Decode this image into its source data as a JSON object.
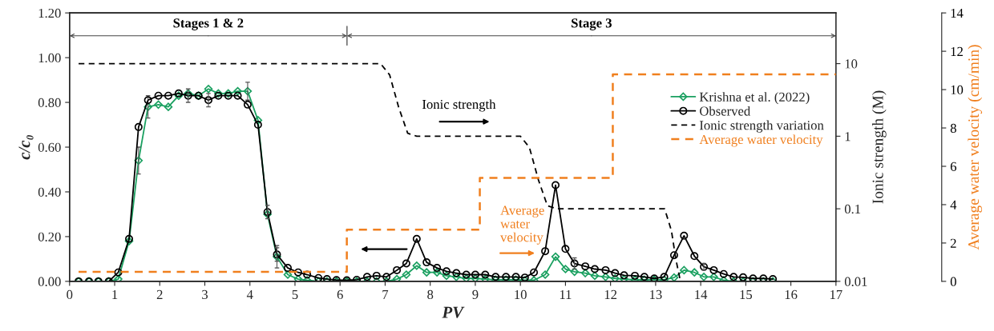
{
  "chart_data": {
    "type": "line",
    "xlabel": "PV",
    "ylabel": "c/c₀",
    "y2label": "Ionic strength (M)",
    "y3label": "Average water velocity (cm/min)",
    "x": [
      0.2,
      0.43,
      0.64,
      0.87,
      1.08,
      1.32,
      1.53,
      1.74,
      1.97,
      2.19,
      2.42,
      2.63,
      2.86,
      3.08,
      3.3,
      3.52,
      3.73,
      3.95,
      4.18,
      4.39,
      4.6,
      4.84,
      5.07,
      5.27,
      5.52,
      5.71,
      5.92,
      6.15,
      6.37,
      6.6,
      6.81,
      7.03,
      7.26,
      7.47,
      7.7,
      7.92,
      8.15,
      8.36,
      8.58,
      8.8,
      9.0,
      9.22,
      9.45,
      9.68,
      9.9,
      10.1,
      10.3,
      10.55,
      10.78,
      11.0,
      11.2,
      11.44,
      11.65,
      11.89,
      12.1,
      12.3,
      12.54,
      12.75,
      12.97,
      13.19,
      13.41,
      13.63,
      13.86,
      14.07,
      14.29,
      14.51,
      14.73,
      14.94,
      15.16,
      15.39,
      15.6
    ],
    "series": [
      {
        "name": "Krishna et al. (2022)",
        "color": "#1aa060",
        "marker": "diamond",
        "values": [
          0,
          0,
          0,
          0,
          0.01,
          0.18,
          0.54,
          0.78,
          0.79,
          0.78,
          0.83,
          0.84,
          0.83,
          0.86,
          0.84,
          0.84,
          0.85,
          0.85,
          0.72,
          0.3,
          0.11,
          0.03,
          0.01,
          0.005,
          0,
          0,
          0,
          0,
          0,
          0,
          0,
          0,
          0.01,
          0.03,
          0.07,
          0.04,
          0.04,
          0.025,
          0.02,
          0.013,
          0.013,
          0.01,
          0.007,
          0.007,
          0.007,
          0.005,
          0.005,
          0.03,
          0.11,
          0.055,
          0.043,
          0.037,
          0.025,
          0.02,
          0.013,
          0.01,
          0.007,
          0.007,
          0.007,
          0.007,
          0.017,
          0.05,
          0.04,
          0.02,
          0.02,
          0.005,
          0,
          0,
          0,
          0,
          0
        ],
        "errors": [
          null,
          null,
          null,
          null,
          null,
          null,
          0.06,
          0.05,
          null,
          null,
          null,
          null,
          null,
          null,
          null,
          null,
          null,
          0.04,
          null,
          null,
          0.05,
          null,
          null,
          null,
          null,
          null,
          null,
          null,
          null,
          null,
          null,
          null,
          null,
          null,
          null,
          null,
          null,
          null,
          null,
          null,
          null,
          null,
          null,
          null,
          null,
          null,
          null,
          null,
          null,
          null,
          null,
          null,
          null,
          null,
          null,
          null,
          null,
          null,
          null,
          null,
          null,
          null,
          null,
          null,
          null,
          null,
          null,
          null,
          null,
          null,
          null
        ]
      },
      {
        "name": "Observed",
        "color": "#000000",
        "marker": "circle",
        "values": [
          0,
          0,
          0,
          0,
          0.04,
          0.19,
          0.69,
          0.81,
          0.83,
          0.83,
          0.84,
          0.83,
          0.83,
          0.81,
          0.83,
          0.83,
          0.83,
          0.79,
          0.7,
          0.31,
          0.12,
          0.06,
          0.04,
          0.03,
          0.015,
          0.01,
          0.006,
          0.005,
          0.007,
          0.02,
          0.025,
          0.02,
          0.05,
          0.08,
          0.19,
          0.085,
          0.06,
          0.045,
          0.037,
          0.03,
          0.03,
          0.03,
          0.02,
          0.02,
          0.02,
          0.017,
          0.04,
          0.135,
          0.43,
          0.145,
          0.08,
          0.067,
          0.055,
          0.05,
          0.037,
          0.027,
          0.025,
          0.02,
          0.013,
          0.02,
          0.117,
          0.204,
          0.113,
          0.065,
          0.05,
          0.033,
          0.02,
          0.018,
          0.013,
          0.013,
          0.01
        ],
        "errors": [
          null,
          null,
          null,
          null,
          null,
          null,
          null,
          null,
          null,
          null,
          null,
          0.03,
          null,
          0.03,
          null,
          null,
          null,
          null,
          null,
          0.03,
          0.03,
          null,
          null,
          null,
          null,
          null,
          null,
          null,
          null,
          null,
          null,
          null,
          null,
          null,
          null,
          null,
          null,
          null,
          null,
          null,
          null,
          null,
          null,
          null,
          null,
          null,
          null,
          null,
          null,
          null,
          0.025,
          null,
          null,
          null,
          null,
          null,
          null,
          null,
          null,
          null,
          null,
          null,
          null,
          0.015,
          null,
          null,
          null,
          null,
          null,
          null,
          null
        ]
      },
      {
        "name": "Ionic strength variation",
        "color": "#000000",
        "axis": "y2",
        "line_style": "dashed",
        "marker": "none",
        "x": [
          0.2,
          6.9,
          7.1,
          7.3,
          7.5,
          7.7,
          10.0,
          10.2,
          10.4,
          10.6,
          10.8,
          13.2,
          13.35,
          13.45,
          13.55
        ],
        "values": [
          10,
          10,
          7,
          2.5,
          1.1,
          1,
          1,
          0.7,
          0.25,
          0.11,
          0.1,
          0.1,
          0.05,
          0.02,
          0.01
        ]
      },
      {
        "name": "Average water velocity",
        "color": "#f07f1e",
        "type": "step",
        "axis": "y3",
        "line_style": "dashed",
        "marker": "none",
        "x": [
          0.2,
          6.15,
          9.1,
          12.05,
          17
        ],
        "values": [
          0.5,
          2.7,
          5.4,
          10.8,
          10.8
        ]
      }
    ],
    "xlim": [
      0,
      17
    ],
    "xticks": [
      0,
      1,
      2,
      3,
      4,
      5,
      6,
      7,
      8,
      9,
      10,
      11,
      12,
      13,
      14,
      15,
      16,
      17
    ],
    "ylim": [
      0,
      1.2
    ],
    "yticks": [
      {
        "value": 0,
        "label": "0.00"
      },
      {
        "value": 0.2,
        "label": "0.20"
      },
      {
        "value": 0.4,
        "label": "0.40"
      },
      {
        "value": 0.6,
        "label": "0.60"
      },
      {
        "value": 0.8,
        "label": "0.80"
      },
      {
        "value": 1.0,
        "label": "1.00"
      },
      {
        "value": 1.2,
        "label": "1.20"
      }
    ],
    "y2lim": [
      0.01,
      50
    ],
    "y2ticks": [
      0.01,
      0.1,
      1,
      10
    ],
    "y3lim": [
      0,
      14
    ],
    "y3ticks": [
      0,
      2,
      4,
      6,
      8,
      10,
      12,
      14
    ],
    "log": "y2",
    "annotations": [
      "Stages 1 & 2",
      "Stage 3",
      "Ionic strength",
      "Average\nwater\nvelocity"
    ],
    "legend": "upper right",
    "grid": false
  }
}
